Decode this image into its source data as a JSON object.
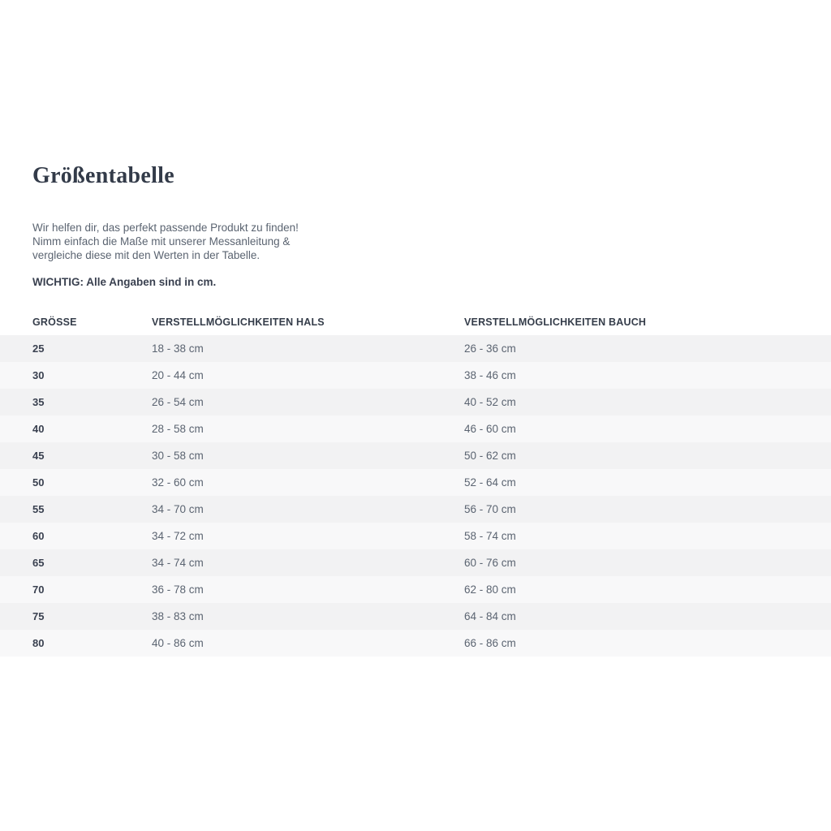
{
  "page": {
    "title": "Größentabelle",
    "intro": {
      "line1": "Wir helfen dir, das perfekt passende Produkt zu finden!",
      "line2": "Nimm einfach die Maße mit unserer Messanleitung &",
      "line3": "vergleiche diese mit den Werten in der Tabelle."
    },
    "important_note": "WICHTIG: Alle Angaben sind in cm."
  },
  "table": {
    "headers": [
      "GRÖSSE",
      "VERSTELLMÖGLICHKEITEN HALS",
      "VERSTELLMÖGLICHKEITEN BAUCH"
    ],
    "rows": [
      {
        "size": "25",
        "hals": "18 - 38 cm",
        "bauch": "26 - 36 cm"
      },
      {
        "size": "30",
        "hals": "20 - 44 cm",
        "bauch": "38 - 46 cm"
      },
      {
        "size": "35",
        "hals": "26 - 54 cm",
        "bauch": "40 - 52 cm"
      },
      {
        "size": "40",
        "hals": "28 - 58 cm",
        "bauch": "46 - 60 cm"
      },
      {
        "size": "45",
        "hals": "30 - 58 cm",
        "bauch": "50 - 62 cm"
      },
      {
        "size": "50",
        "hals": "32 - 60 cm",
        "bauch": "52 - 64 cm"
      },
      {
        "size": "55",
        "hals": "34 - 70 cm",
        "bauch": "56 - 70 cm"
      },
      {
        "size": "60",
        "hals": "34 - 72 cm",
        "bauch": "58 - 74 cm"
      },
      {
        "size": "65",
        "hals": "34 - 74 cm",
        "bauch": "60 - 76 cm"
      },
      {
        "size": "70",
        "hals": "36 - 78 cm",
        "bauch": "62 - 80 cm"
      },
      {
        "size": "75",
        "hals": "38 - 83 cm",
        "bauch": "64 - 84 cm"
      },
      {
        "size": "80",
        "hals": "40 - 86 cm",
        "bauch": "66 - 86 cm"
      }
    ]
  },
  "colors": {
    "heading_text": "#333b49",
    "body_text": "#5b6471",
    "row_stripe_dark": "#f2f2f3",
    "row_stripe_light": "#f8f8f9"
  }
}
